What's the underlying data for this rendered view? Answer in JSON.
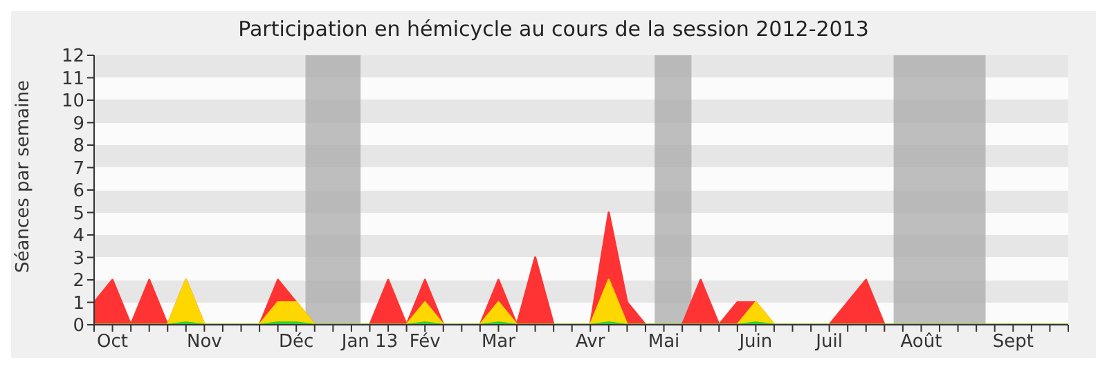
{
  "chart_data": {
    "type": "area",
    "title": "Participation en hémicycle au cours de la session 2012-2013",
    "ylabel": "Séances par semaine",
    "categories": [
      null,
      "Oct",
      null,
      null,
      null,
      null,
      "Nov",
      null,
      null,
      null,
      null,
      "Déc",
      null,
      null,
      null,
      "Jan 13",
      null,
      null,
      "Fév",
      null,
      null,
      null,
      "Mar",
      null,
      null,
      null,
      null,
      "Avr",
      null,
      null,
      null,
      "Mai",
      null,
      null,
      null,
      null,
      "Juin",
      null,
      null,
      null,
      "Juil",
      null,
      null,
      null,
      null,
      "Août",
      null,
      null,
      null,
      null,
      "Sept",
      null,
      null,
      null
    ],
    "series": [
      {
        "color": "#ff3333",
        "values": [
          1,
          2,
          0,
          2,
          0,
          2,
          0,
          0,
          0,
          0,
          2,
          1,
          0,
          0,
          0,
          0,
          2,
          0,
          2,
          0,
          0,
          0,
          2,
          0,
          3,
          0,
          0,
          0,
          5,
          1,
          0,
          0,
          0,
          2,
          0,
          1,
          1,
          0,
          0,
          0,
          0,
          1,
          2,
          0,
          0,
          0,
          0,
          0,
          0,
          0,
          0,
          0,
          0,
          0
        ]
      },
      {
        "color": "#ffd700",
        "values": [
          0,
          0,
          0,
          0,
          0,
          2,
          0,
          0,
          0,
          0,
          1,
          1,
          0,
          0,
          0,
          0,
          0,
          0,
          1,
          0,
          0,
          0,
          1,
          0,
          0,
          0,
          0,
          0,
          2,
          0,
          0,
          0,
          0,
          0,
          0,
          0,
          1,
          0,
          0,
          0,
          0,
          0,
          0,
          0,
          0,
          0,
          0,
          0,
          0,
          0,
          0,
          0,
          0,
          0
        ]
      },
      {
        "color": "#33cc33",
        "values": [
          0,
          0,
          0,
          0,
          0,
          0.1,
          0,
          0,
          0,
          0,
          0.1,
          0.1,
          0,
          0,
          0,
          0,
          0,
          0,
          0.1,
          0,
          0,
          0,
          0.1,
          0,
          0,
          0,
          0,
          0,
          0.1,
          0,
          0,
          0,
          0,
          0,
          0,
          0,
          0.1,
          0,
          0,
          0,
          0,
          0,
          0,
          0,
          0,
          0,
          0,
          0,
          0,
          0,
          0,
          0,
          0,
          0
        ]
      }
    ],
    "ylim": [
      0,
      12
    ],
    "yticks": [
      0,
      1,
      2,
      3,
      4,
      5,
      6,
      7,
      8,
      9,
      10,
      11,
      12
    ],
    "legend": false
  }
}
